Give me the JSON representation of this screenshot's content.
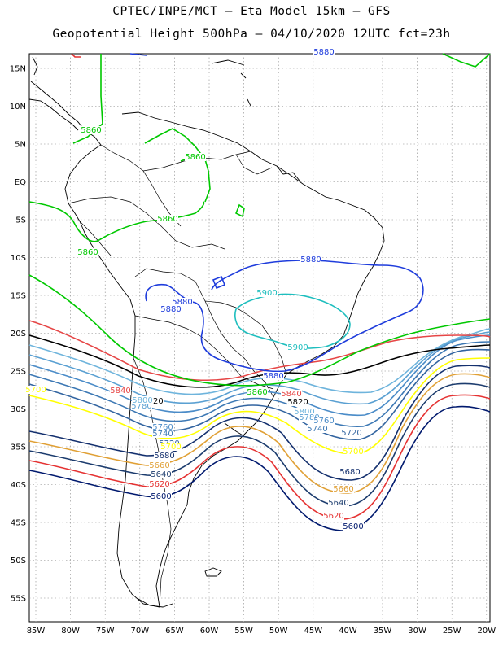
{
  "title": {
    "line1": "CPTEC/INPE/MCT –  Eta Model 15km – GFS",
    "line2": "Geopotential Height 500hPa – 04/10/2020 12UTC fct=23h"
  },
  "axes": {
    "lat_labels": [
      "15N",
      "10N",
      "5N",
      "EQ",
      "5S",
      "10S",
      "15S",
      "20S",
      "25S",
      "30S",
      "35S",
      "40S",
      "45S",
      "50S",
      "55S"
    ],
    "lon_labels": [
      "85W",
      "80W",
      "75W",
      "70W",
      "65W",
      "60W",
      "55W",
      "50W",
      "45W",
      "40W",
      "35W",
      "30W",
      "25W",
      "20W"
    ]
  },
  "colors": {
    "c5600": "#00196e",
    "c5620": "#e53232",
    "c5640": "#1c3c6e",
    "c5660": "#e0a035",
    "c5680": "#14306e",
    "c5700": "#ffff00",
    "c5720": "#3264a0",
    "c5740": "#3c78b4",
    "c5760": "#4b8cc8",
    "c5780": "#5aa0d2",
    "c5800": "#6eb4dc",
    "c5820": "#000000",
    "c5840": "#e64646",
    "c5860": "#00c800",
    "c5880": "#1e3cdc",
    "c5900": "#1ebebe",
    "coast": "#000000",
    "grid": "#888888"
  },
  "contour_labels": [
    {
      "text": "5860",
      "color": "c5860"
    },
    {
      "text": "5860",
      "color": "c5860"
    },
    {
      "text": "5860",
      "color": "c5860"
    },
    {
      "text": "5860",
      "color": "c5860"
    },
    {
      "text": "5880",
      "color": "c5880"
    },
    {
      "text": "5880",
      "color": "c5880"
    },
    {
      "text": "5880",
      "color": "c5880"
    },
    {
      "text": "5880",
      "color": "c5880"
    },
    {
      "text": "5880",
      "color": "c5880"
    },
    {
      "text": "5900",
      "color": "c5900"
    },
    {
      "text": "5900",
      "color": "c5900"
    },
    {
      "text": "5860",
      "color": "c5860"
    },
    {
      "text": "5840",
      "color": "c5840"
    },
    {
      "text": "5840",
      "color": "c5840"
    },
    {
      "text": "5820",
      "color": "c5820"
    },
    {
      "text": "5820",
      "color": "c5820"
    },
    {
      "text": "5800",
      "color": "c5800"
    },
    {
      "text": "5780",
      "color": "c5780"
    },
    {
      "text": "5760",
      "color": "c5760"
    },
    {
      "text": "5740",
      "color": "c5740"
    },
    {
      "text": "5720",
      "color": "c5720"
    },
    {
      "text": "5700",
      "color": "c5700"
    },
    {
      "text": "5760",
      "color": "c5760"
    },
    {
      "text": "5740",
      "color": "c5740"
    },
    {
      "text": "5720",
      "color": "c5720"
    },
    {
      "text": "5700",
      "color": "c5700"
    },
    {
      "text": "5680",
      "color": "c5680"
    },
    {
      "text": "5660",
      "color": "c5660"
    },
    {
      "text": "5640",
      "color": "c5640"
    },
    {
      "text": "5620",
      "color": "c5620"
    },
    {
      "text": "5600",
      "color": "c5600"
    },
    {
      "text": "5680",
      "color": "c5680"
    },
    {
      "text": "5660",
      "color": "c5660"
    },
    {
      "text": "5640",
      "color": "c5640"
    },
    {
      "text": "5620",
      "color": "c5620"
    },
    {
      "text": "5600",
      "color": "c5600"
    },
    {
      "text": "5700",
      "color": "c5700"
    },
    {
      "text": "5780",
      "color": "c5780"
    },
    {
      "text": "5800",
      "color": "c5800"
    }
  ]
}
